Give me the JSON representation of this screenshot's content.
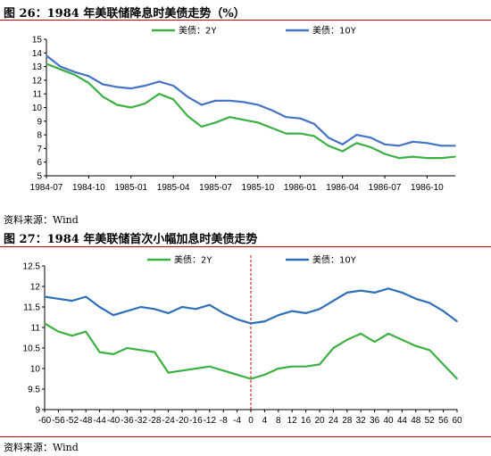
{
  "figures": [
    {
      "title": "图 26：1984 年美联储降息时美债走势（%）",
      "source": "资料来源：Wind"
    },
    {
      "title": "图 27：1984 年美联储首次小幅加息时美债走势",
      "source": "资料来源：Wind"
    }
  ],
  "chart_data": [
    {
      "type": "line",
      "title": "",
      "xlabel": "",
      "ylabel": "",
      "ylim": [
        5,
        15
      ],
      "yticks": [
        5,
        6,
        7,
        8,
        9,
        10,
        11,
        12,
        13,
        14,
        15
      ],
      "x_tick_labels": [
        "1984-07",
        "1984-10",
        "1985-01",
        "1985-04",
        "1985-07",
        "1985-10",
        "1986-01",
        "1986-04",
        "1986-07",
        "1986-10"
      ],
      "x": [
        "1984-07",
        "1984-08",
        "1984-09",
        "1984-10",
        "1984-11",
        "1984-12",
        "1985-01",
        "1985-02",
        "1985-03",
        "1985-04",
        "1985-05",
        "1985-06",
        "1985-07",
        "1985-08",
        "1985-09",
        "1985-10",
        "1985-11",
        "1985-12",
        "1986-01",
        "1986-02",
        "1986-03",
        "1986-04",
        "1986-05",
        "1986-06",
        "1986-07",
        "1986-08",
        "1986-09",
        "1986-10",
        "1986-11",
        "1986-12"
      ],
      "legend_position": "top",
      "grid": false,
      "series": [
        {
          "name": "美债：2Y",
          "color": "#3cb043",
          "values": [
            13.2,
            12.8,
            12.4,
            11.8,
            10.8,
            10.2,
            10.0,
            10.3,
            11.0,
            10.6,
            9.4,
            8.6,
            8.9,
            9.3,
            9.1,
            8.9,
            8.5,
            8.1,
            8.1,
            7.9,
            7.2,
            6.8,
            7.4,
            7.1,
            6.6,
            6.3,
            6.4,
            6.3,
            6.3,
            6.4
          ]
        },
        {
          "name": "美债：10Y",
          "color": "#4472c4",
          "values": [
            13.8,
            13.0,
            12.6,
            12.3,
            11.7,
            11.5,
            11.4,
            11.6,
            11.9,
            11.6,
            10.8,
            10.2,
            10.5,
            10.5,
            10.4,
            10.2,
            9.8,
            9.3,
            9.2,
            8.8,
            7.8,
            7.3,
            8.0,
            7.8,
            7.3,
            7.2,
            7.5,
            7.4,
            7.2,
            7.2
          ]
        }
      ]
    },
    {
      "type": "line",
      "title": "",
      "xlabel": "",
      "ylabel": "",
      "ylim": [
        9,
        12.5
      ],
      "yticks": [
        9,
        9.5,
        10,
        10.5,
        11,
        11.5,
        12,
        12.5
      ],
      "xlim": [
        -60,
        60
      ],
      "x_tick_labels": [
        -60,
        -56,
        -52,
        -48,
        -44,
        -40,
        -36,
        -32,
        -28,
        -24,
        -20,
        -16,
        -12,
        -8,
        -4,
        0,
        4,
        8,
        12,
        16,
        20,
        24,
        28,
        32,
        36,
        40,
        44,
        48,
        52,
        56,
        60
      ],
      "vertical_marker_x": 0,
      "legend_position": "top",
      "grid": false,
      "x": [
        -60,
        -56,
        -52,
        -48,
        -44,
        -40,
        -36,
        -32,
        -28,
        -24,
        -20,
        -16,
        -12,
        -8,
        -4,
        0,
        4,
        8,
        12,
        16,
        20,
        24,
        28,
        32,
        36,
        40,
        44,
        48,
        52,
        56,
        60
      ],
      "series": [
        {
          "name": "美债：2Y",
          "color": "#3cb043",
          "values": [
            11.1,
            10.9,
            10.8,
            10.9,
            10.4,
            10.35,
            10.5,
            10.45,
            10.4,
            9.9,
            9.95,
            10.0,
            10.05,
            9.95,
            9.85,
            9.75,
            9.85,
            10.0,
            10.05,
            10.05,
            10.1,
            10.5,
            10.7,
            10.85,
            10.65,
            10.85,
            10.7,
            10.55,
            10.45,
            10.1,
            9.75
          ]
        },
        {
          "name": "美债：10Y",
          "color": "#2e6fb7",
          "values": [
            11.75,
            11.7,
            11.65,
            11.75,
            11.5,
            11.3,
            11.4,
            11.5,
            11.45,
            11.35,
            11.5,
            11.45,
            11.55,
            11.35,
            11.2,
            11.1,
            11.15,
            11.3,
            11.4,
            11.35,
            11.45,
            11.65,
            11.85,
            11.9,
            11.85,
            11.95,
            11.85,
            11.7,
            11.6,
            11.4,
            11.15
          ]
        }
      ]
    }
  ]
}
